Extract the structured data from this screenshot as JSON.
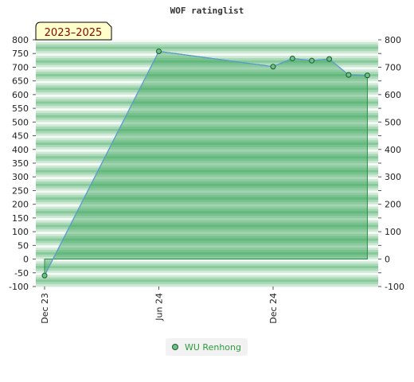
{
  "chart_data": {
    "type": "area",
    "title": "WOF ratinglist",
    "period_badge": "2023–2025",
    "x_tick_labels": [
      "Dec 23",
      "Jun 24",
      "Dec 24"
    ],
    "ylim": [
      -100,
      800
    ],
    "y_ticks": [
      800,
      750,
      700,
      650,
      600,
      550,
      500,
      450,
      400,
      350,
      300,
      250,
      200,
      150,
      100,
      50,
      0,
      -50,
      -100
    ],
    "y_ticks_right": [
      800,
      700,
      600,
      500,
      400,
      300,
      200,
      100,
      0,
      -100
    ],
    "series": [
      {
        "name": "WU Renhong",
        "points": [
          {
            "date": "2023-12",
            "value": -60
          },
          {
            "date": "2024-06",
            "value": 758
          },
          {
            "date": "2024-12",
            "value": 702
          },
          {
            "date": "2025-01",
            "value": 732
          },
          {
            "date": "2025-02",
            "value": 724
          },
          {
            "date": "2025-03",
            "value": 730
          },
          {
            "date": "2025-04",
            "value": 672
          },
          {
            "date": "2025-05",
            "value": 670
          }
        ]
      }
    ],
    "grid": "horizontal-bands",
    "legend_position": "bottom",
    "colors": {
      "fill": "#3aa35a",
      "line": "#5b9bd5",
      "marker": "#6cc08a",
      "marker_edge": "#1d5a2e",
      "band_dark": "#86c99a",
      "band_light": "#f4faf5",
      "legend_text": "#2e9a3e",
      "badge_bg": "#ffffcc"
    }
  }
}
